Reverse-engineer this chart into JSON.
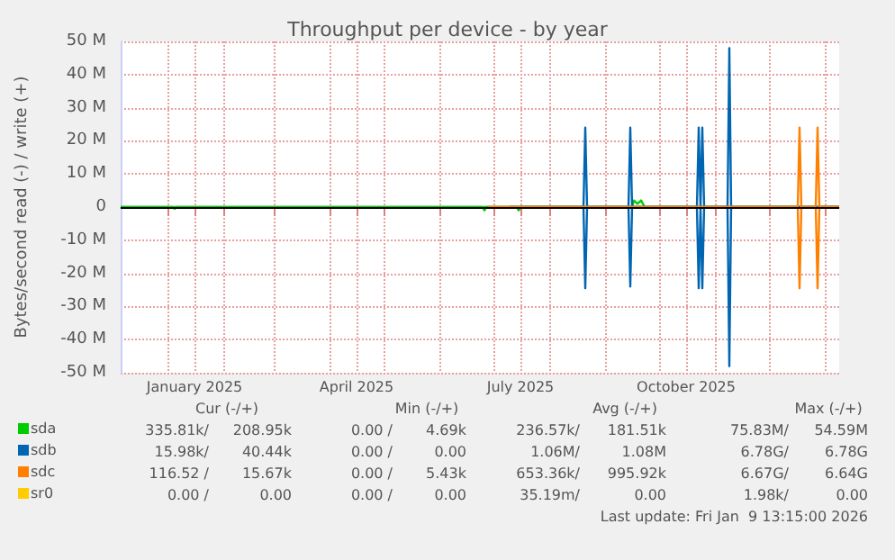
{
  "chart_data": {
    "type": "line",
    "title": "Throughput per device - by year",
    "ylabel": "Bytes/second read (-) / write (+)",
    "xlim": [
      "2024-12-06",
      "2026-01-09"
    ],
    "xticks": [
      {
        "value": "2025-01-01",
        "label": null
      },
      {
        "value": "2025-01-16",
        "label": "January 2025"
      },
      {
        "value": "2025-02-01",
        "label": null
      },
      {
        "value": "2025-03-01",
        "label": null
      },
      {
        "value": "2025-04-01",
        "label": null
      },
      {
        "value": "2025-04-16",
        "label": "April 2025"
      },
      {
        "value": "2025-05-01",
        "label": null
      },
      {
        "value": "2025-06-01",
        "label": null
      },
      {
        "value": "2025-07-01",
        "label": null
      },
      {
        "value": "2025-07-16",
        "label": "July 2025"
      },
      {
        "value": "2025-08-01",
        "label": null
      },
      {
        "value": "2025-09-01",
        "label": null
      },
      {
        "value": "2025-10-01",
        "label": null
      },
      {
        "value": "2025-10-16",
        "label": "October 2025"
      },
      {
        "value": "2025-11-01",
        "label": null
      },
      {
        "value": "2025-12-01",
        "label": null
      },
      {
        "value": "2026-01-01",
        "label": null
      }
    ],
    "ylim": [
      -50000000,
      50000000
    ],
    "yticks": [
      {
        "value": -50000000,
        "label": "-50 M"
      },
      {
        "value": -40000000,
        "label": "-40 M"
      },
      {
        "value": -30000000,
        "label": "-30 M"
      },
      {
        "value": -20000000,
        "label": "-20 M"
      },
      {
        "value": -10000000,
        "label": "-10 M"
      },
      0,
      {
        "value": 10000000,
        "label": "10 M"
      },
      {
        "value": 20000000,
        "label": "20 M"
      },
      {
        "value": 30000000,
        "label": "30 M"
      },
      {
        "value": 40000000,
        "label": "40 M"
      },
      {
        "value": 50000000,
        "label": "50 M"
      }
    ],
    "grid": true,
    "legend": "bottom left",
    "marker": "none",
    "line_style": "solid",
    "ref_lines": [
      {
        "axis": "y",
        "value": 0,
        "color": "#000000"
      }
    ],
    "series": [
      {
        "name": "sda",
        "color": "#00cc00",
        "x": [
          "2024-12-06",
          "2025-09-16",
          "2025-09-17",
          "2025-09-19",
          "2025-09-21",
          "2025-09-23",
          "2026-01-09"
        ],
        "values": [
          0,
          0,
          2000000,
          1000000,
          2000000,
          0,
          0
        ]
      },
      {
        "color": "#00cc00",
        "x": [
          "2024-12-06",
          "2025-01-04",
          "2025-01-05",
          "2025-01-06",
          "2025-06-25",
          "2025-06-26",
          "2025-06-27",
          "2025-07-14",
          "2025-07-15",
          "2025-07-16",
          "2026-01-09"
        ],
        "values": [
          0,
          0,
          -500000,
          0,
          0,
          -1000000,
          0,
          0,
          -1000000,
          0,
          0
        ]
      },
      {
        "name": "sdb",
        "color": "#0066b3",
        "x": [
          "2025-07-10",
          "2025-08-20",
          "2025-08-21",
          "2025-08-22",
          "2025-09-14",
          "2025-09-15",
          "2025-09-16",
          "2025-10-22",
          "2025-10-23",
          "2025-10-24",
          "2025-10-25",
          "2025-10-26",
          "2025-11-08",
          "2025-11-09",
          "2025-11-10",
          "2026-01-09"
        ],
        "values": [
          0,
          0,
          24000000,
          0,
          0,
          24000000,
          0,
          0,
          24000000,
          0,
          24000000,
          0,
          0,
          48000000,
          0,
          0
        ]
      },
      {
        "color": "#0066b3",
        "x": [
          "2025-07-10",
          "2025-08-20",
          "2025-08-21",
          "2025-08-22",
          "2025-09-14",
          "2025-09-15",
          "2025-09-16",
          "2025-10-22",
          "2025-10-23",
          "2025-10-24",
          "2025-10-25",
          "2025-10-26",
          "2025-11-08",
          "2025-11-09",
          "2025-11-10",
          "2026-01-09"
        ],
        "values": [
          0,
          0,
          -24500000,
          0,
          0,
          -24000000,
          0,
          0,
          -24500000,
          0,
          -24500000,
          0,
          0,
          -48000000,
          0,
          0
        ]
      },
      {
        "name": "sdc",
        "color": "#ff8000",
        "x": [
          "2025-06-28",
          "2025-12-17",
          "2025-12-18",
          "2025-12-19",
          "2025-12-27",
          "2025-12-28",
          "2025-12-29",
          "2026-01-09"
        ],
        "values": [
          0,
          0,
          24000000,
          0,
          0,
          24000000,
          0,
          0
        ]
      },
      {
        "color": "#ff8000",
        "x": [
          "2025-06-28",
          "2025-12-17",
          "2025-12-18",
          "2025-12-19",
          "2025-12-27",
          "2025-12-28",
          "2025-12-29",
          "2026-01-09"
        ],
        "values": [
          0,
          0,
          -24500000,
          0,
          0,
          -24500000,
          0,
          0
        ]
      },
      {
        "name": "sr0",
        "color": "#ffcc00"
      }
    ],
    "annotations": [
      "Cur (-/+)",
      "Min (-/+)",
      "Avg (-/+)",
      "Max (-/+)",
      "335.81k/",
      "208.95k",
      "0.00 /",
      "4.69k",
      "236.57k/",
      "181.51k",
      "75.83M/",
      "54.59M",
      "15.98k/",
      "40.44k",
      "0.00 /",
      "0.00",
      "1.06M/",
      "1.08M",
      "6.78G/",
      "6.78G",
      "116.52 /",
      "15.67k",
      "0.00 /",
      "5.43k",
      "653.36k/",
      "995.92k",
      "6.67G/",
      "6.64G",
      "0.00 /",
      "0.00",
      "0.00 /",
      "0.00",
      "35.19m/",
      "0.00",
      "1.98k/",
      "0.00",
      "Last update: Fri Jan  9 13:15:00 2026"
    ]
  }
}
